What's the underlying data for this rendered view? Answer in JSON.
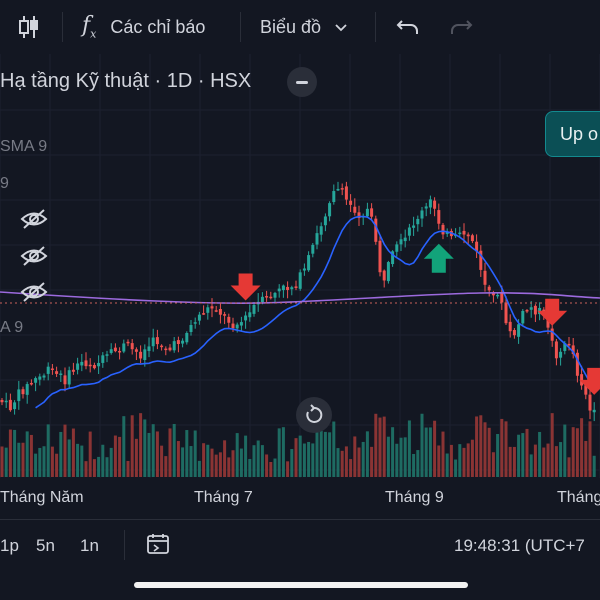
{
  "toolbar": {
    "indicators_label": "Các chỉ báo",
    "chart_type_label": "Biểu đồ"
  },
  "legend": {
    "title": "Hạ tầng Kỹ thuật · 1D · HSX",
    "ind1": "SMA 9",
    "ind2": "9",
    "ind3": "A 9"
  },
  "tooltip": "Up o",
  "xaxis": {
    "labels": [
      "Tháng Năm",
      "Tháng 7",
      "Tháng 9",
      "Tháng"
    ]
  },
  "bottombar": {
    "timeframes": [
      "1p",
      "5n",
      "1n"
    ],
    "clock": "19:48:31 (UTC+7"
  },
  "colors": {
    "bg": "#131722",
    "up": "#26a69a",
    "down": "#ef5350",
    "sma": "#2962ff",
    "avg": "#9c6ade",
    "arrow_down": "#e53935",
    "arrow_up": "#12a37a"
  },
  "chart_data": {
    "type": "candlestick",
    "timeframe": "1D",
    "signals": [
      {
        "type": "sell",
        "index": 58
      },
      {
        "type": "buy",
        "index": 104
      },
      {
        "type": "sell",
        "index": 131
      },
      {
        "type": "sell",
        "index": 144
      }
    ]
  }
}
